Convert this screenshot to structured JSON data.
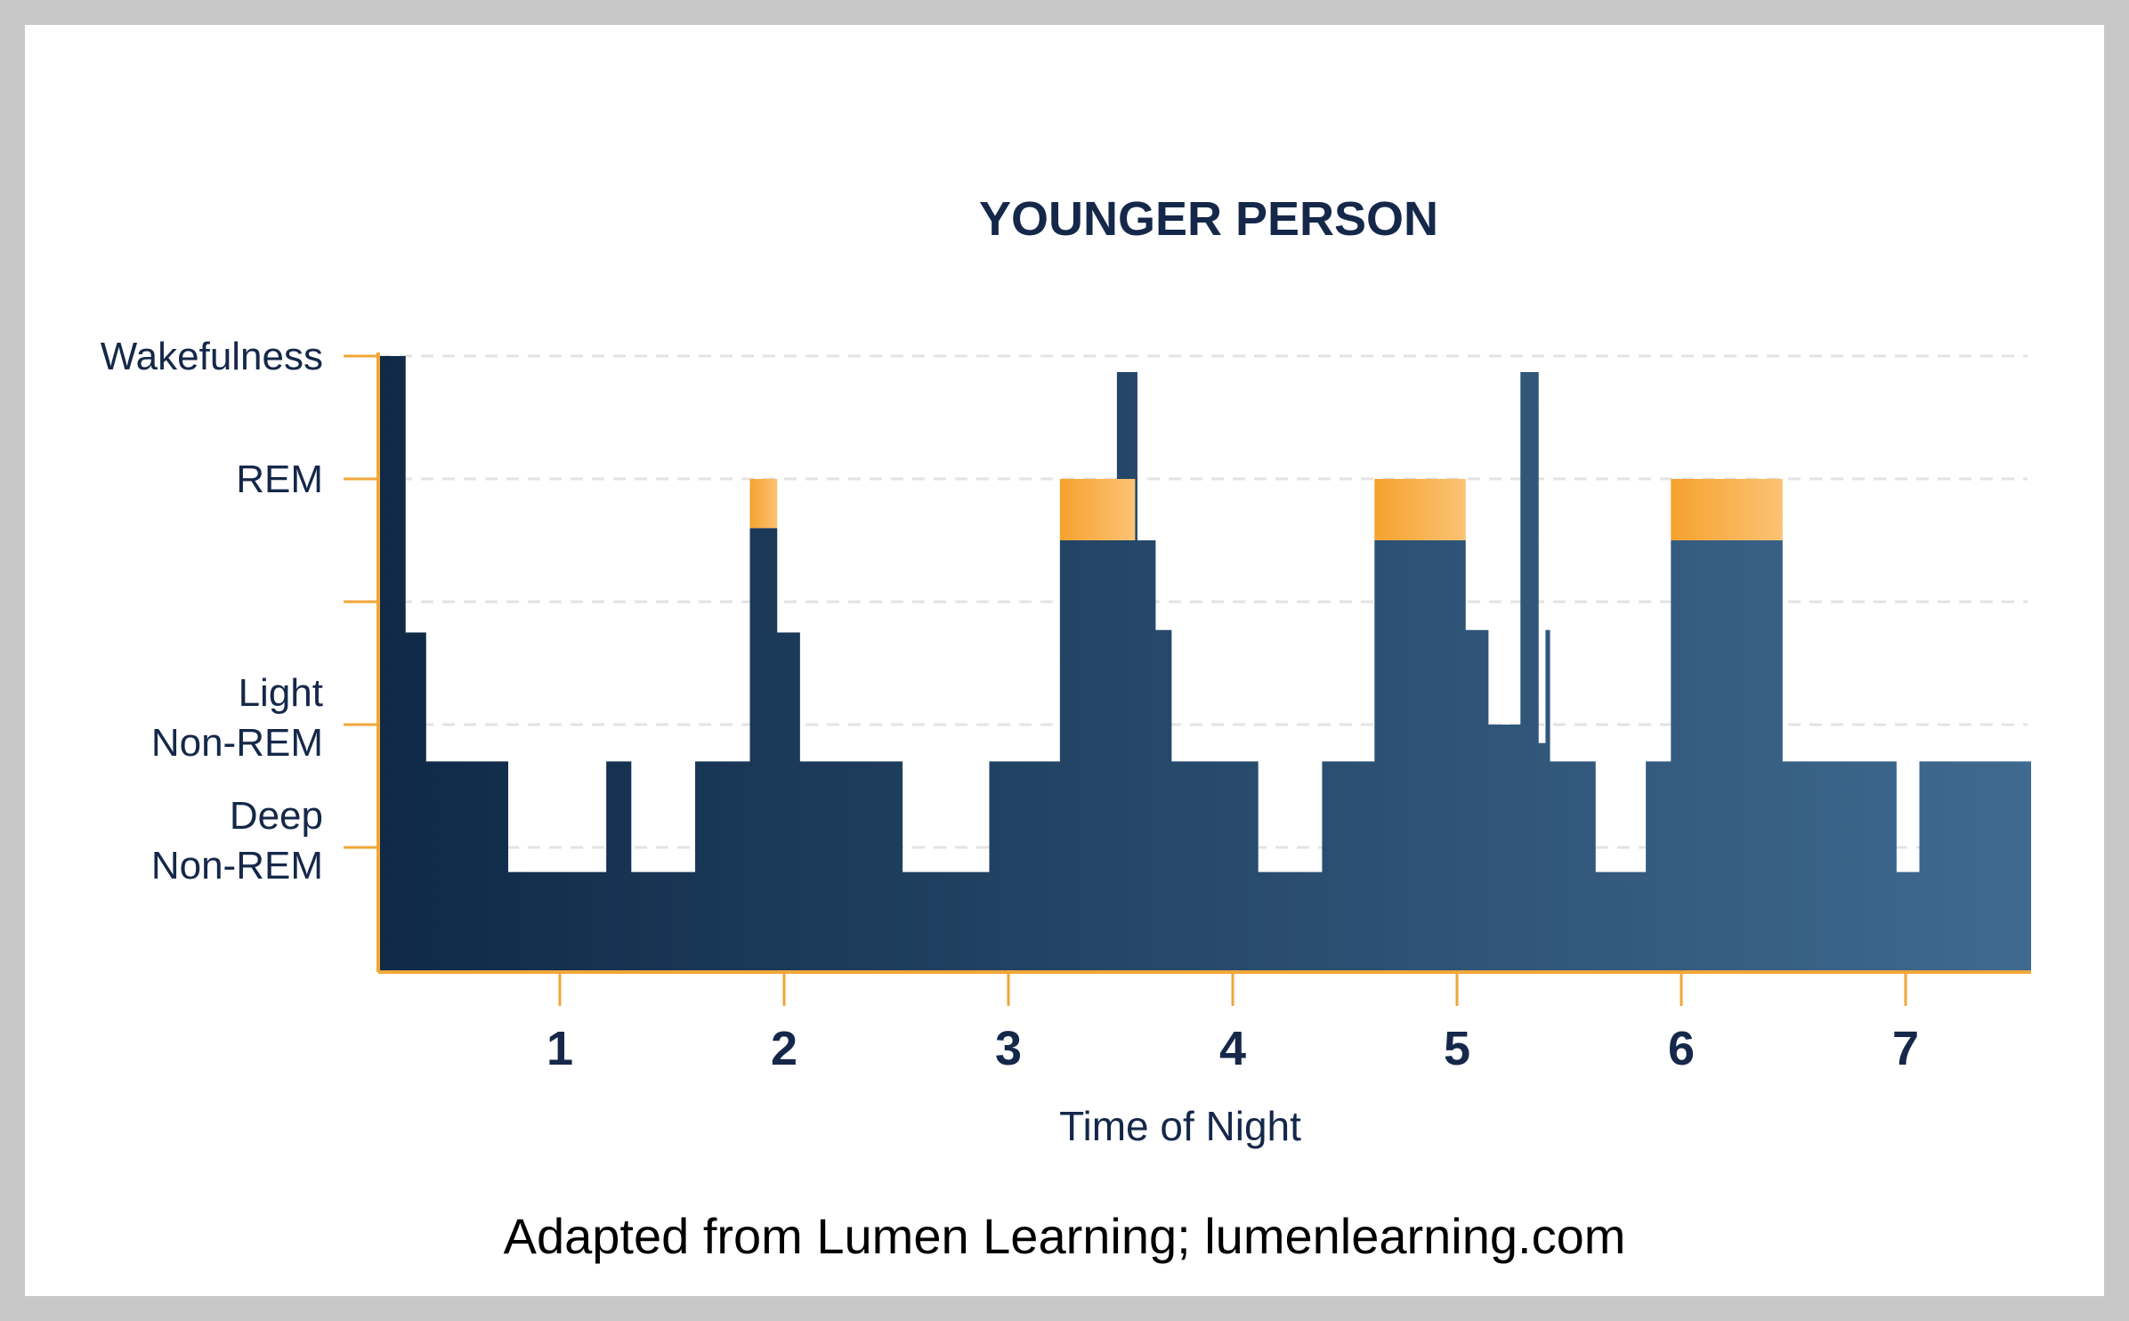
{
  "credit": "Adapted from Lumen Learning; lumenlearning.com",
  "colors": {
    "bar_start": "#0f2947",
    "bar_end": "#3f6a90",
    "rem_start": "#f5a22e",
    "rem_end": "#fcc274",
    "axis": "#f0a638",
    "grid": "#e3e3e3",
    "text": "#15284a"
  },
  "chart_data": {
    "type": "area",
    "title": "YOUNGER PERSON",
    "xlabel": "Time of Night",
    "ylabel": "",
    "x_ticks": [
      "1",
      "2",
      "3",
      "4",
      "5",
      "6",
      "7"
    ],
    "x_tick_values": [
      1,
      2,
      3,
      4,
      5,
      6,
      7
    ],
    "xlim": [
      0.15,
      7.4
    ],
    "ylim": [
      0,
      5
    ],
    "grid": true,
    "y_levels": [
      {
        "value": 1,
        "lines": [
          "Deep",
          "Non-REM"
        ]
      },
      {
        "value": 2,
        "lines": [
          "Light",
          "Non-REM"
        ]
      },
      {
        "value": 3,
        "lines": []
      },
      {
        "value": 4,
        "lines": [
          "REM"
        ]
      },
      {
        "value": 5,
        "lines": [
          "Wakefulness"
        ]
      }
    ],
    "stage_series": [
      [
        0.15,
        5.0
      ],
      [
        0.27,
        2.75
      ],
      [
        0.36,
        1.7
      ],
      [
        0.72,
        0.8
      ],
      [
        1.15,
        1.7
      ],
      [
        1.26,
        0.8
      ],
      [
        1.54,
        1.7
      ],
      [
        1.78,
        3.6
      ],
      [
        1.9,
        2.75
      ],
      [
        2.0,
        1.7
      ],
      [
        2.45,
        0.8
      ],
      [
        2.83,
        1.7
      ],
      [
        3.14,
        3.5
      ],
      [
        3.39,
        4.87
      ],
      [
        3.48,
        3.5
      ],
      [
        3.56,
        2.77
      ],
      [
        3.63,
        1.7
      ],
      [
        4.01,
        0.8
      ],
      [
        4.29,
        1.7
      ],
      [
        4.52,
        3.5
      ],
      [
        4.92,
        2.77
      ],
      [
        5.02,
        2.0
      ],
      [
        5.16,
        4.87
      ],
      [
        5.24,
        1.85
      ],
      [
        5.27,
        2.77
      ],
      [
        5.29,
        1.7
      ],
      [
        5.49,
        0.8
      ],
      [
        5.71,
        1.7
      ],
      [
        5.82,
        3.5
      ],
      [
        6.31,
        1.7
      ],
      [
        6.81,
        0.8
      ],
      [
        6.91,
        1.7
      ],
      [
        7.4,
        1.7
      ]
    ],
    "rem_periods": [
      {
        "start": 1.78,
        "end": 1.9,
        "bottom": 3.6,
        "top": 4.0
      },
      {
        "start": 3.14,
        "end": 3.47,
        "bottom": 3.5,
        "top": 4.0
      },
      {
        "start": 4.52,
        "end": 4.92,
        "bottom": 3.5,
        "top": 4.0
      },
      {
        "start": 5.82,
        "end": 6.31,
        "bottom": 3.5,
        "top": 4.0
      }
    ]
  }
}
